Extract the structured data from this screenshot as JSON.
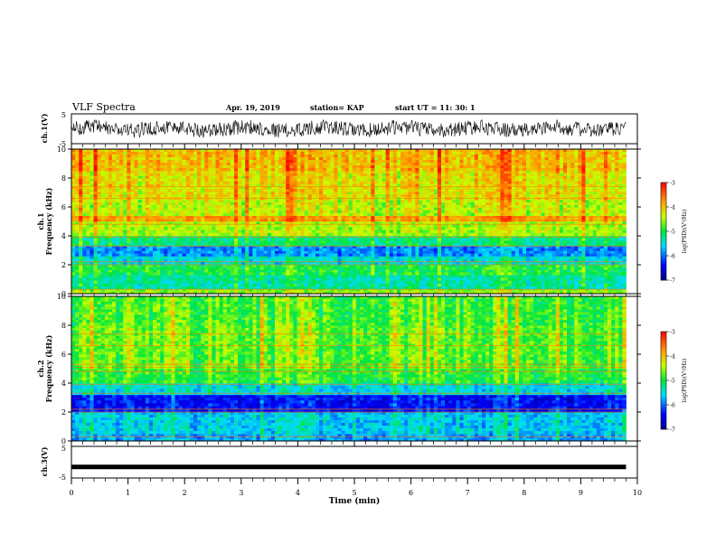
{
  "header": {
    "title": "VLF Spectra",
    "date": "Apr. 19, 2019",
    "station": "station= KAP",
    "start": "start  UT  =   11: 30: 1"
  },
  "chart_data": [
    {
      "type": "line",
      "name_label": "ch.1(V)",
      "ylim": [
        -5,
        5
      ],
      "yticks": [
        "5",
        "-5"
      ],
      "description_values": {
        "mean": 0.0,
        "amplitude": 2.5
      }
    },
    {
      "type": "heatmap",
      "ylabel_top": "ch.1",
      "ylabel": "Frequency (kHz)",
      "ylim": [
        0,
        10
      ],
      "yticks": [
        "0",
        "2",
        "4",
        "6",
        "8",
        "10"
      ],
      "colorbar": {
        "label": "log(PSD)(V²/Hz)",
        "range": [
          -7,
          -3
        ],
        "ticks": [
          "-3",
          "-4",
          "-5",
          "-6",
          "-7"
        ]
      },
      "bands": [
        {
          "f": [
            0,
            0.3
          ],
          "v": -4.6
        },
        {
          "f": [
            0.3,
            1.3
          ],
          "v": -5.3
        },
        {
          "f": [
            1.3,
            2.0
          ],
          "v": -5.0
        },
        {
          "f": [
            2.0,
            2.6
          ],
          "v": -5.5
        },
        {
          "f": [
            2.6,
            3.3
          ],
          "v": -5.9
        },
        {
          "f": [
            3.3,
            4.0
          ],
          "v": -5.2
        },
        {
          "f": [
            4.0,
            5.0
          ],
          "v": -4.5
        },
        {
          "f": [
            5.0,
            5.4
          ],
          "v": -3.9
        },
        {
          "f": [
            5.4,
            6.5
          ],
          "v": -4.4
        },
        {
          "f": [
            6.5,
            8.5
          ],
          "v": -4.2
        },
        {
          "f": [
            8.5,
            10
          ],
          "v": -4.0
        }
      ]
    },
    {
      "type": "heatmap",
      "ylabel_top": "ch.2",
      "ylabel": "Frequency (kHz)",
      "ylim": [
        0,
        10
      ],
      "yticks": [
        "0",
        "2",
        "4",
        "6",
        "8",
        "10"
      ],
      "colorbar": {
        "label": "log(PSD)(V²/Hz)",
        "range": [
          -7,
          -3
        ],
        "ticks": [
          "-3",
          "-4",
          "-5",
          "-6",
          "-7"
        ]
      },
      "bands": [
        {
          "f": [
            0,
            0.5
          ],
          "v": -5.8
        },
        {
          "f": [
            0.5,
            2.0
          ],
          "v": -5.6
        },
        {
          "f": [
            2.0,
            3.2
          ],
          "v": -6.4
        },
        {
          "f": [
            3.2,
            4.0
          ],
          "v": -5.5
        },
        {
          "f": [
            4.0,
            5.0
          ],
          "v": -4.9
        },
        {
          "f": [
            5.0,
            6.0
          ],
          "v": -4.7
        },
        {
          "f": [
            6.0,
            8.0
          ],
          "v": -4.7
        },
        {
          "f": [
            8.0,
            10
          ],
          "v": -4.8
        }
      ]
    },
    {
      "type": "line",
      "name_label": "ch.3(V)",
      "ylim": [
        -5,
        5
      ],
      "yticks": [
        "5",
        "-5"
      ],
      "description_values": {
        "level": -1.5
      }
    }
  ],
  "xaxis": {
    "label": "Time (min)",
    "range": [
      0,
      10
    ],
    "ticks": [
      "0",
      "1",
      "2",
      "3",
      "4",
      "5",
      "6",
      "7",
      "8",
      "9",
      "10"
    ],
    "data_end": 9.8
  }
}
